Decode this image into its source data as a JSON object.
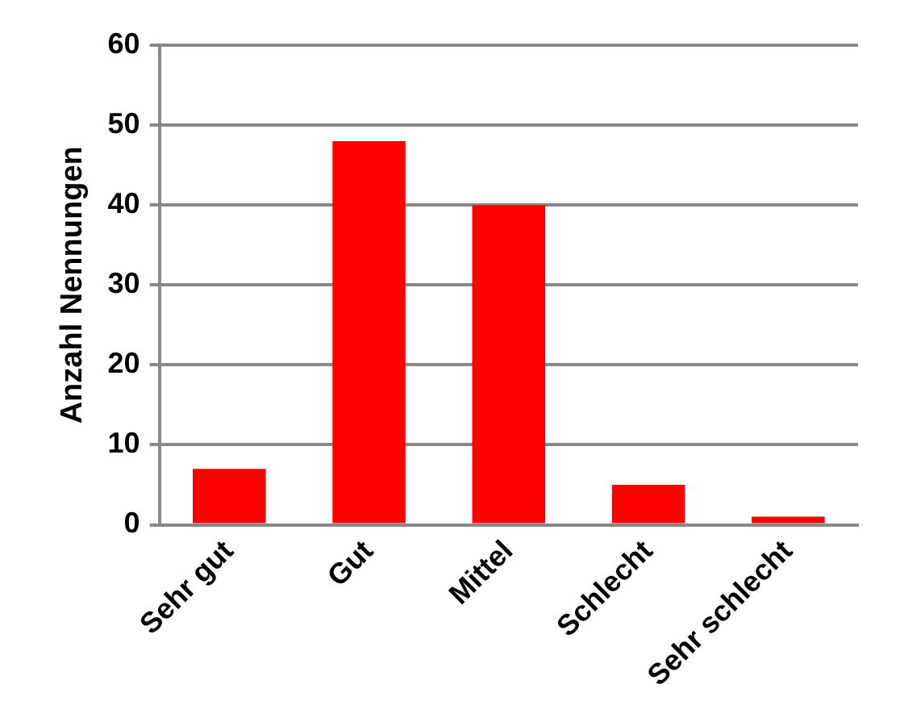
{
  "chart_data": {
    "type": "bar",
    "ylabel": "Anzahl Nennungen",
    "categories": [
      "Sehr gut",
      "Gut",
      "Mittel",
      "Schlecht",
      "Sehr schlecht"
    ],
    "values": [
      7,
      48,
      40,
      5,
      1
    ],
    "color": "#ff0000",
    "ylim": [
      0,
      60
    ],
    "yticks": [
      0,
      10,
      20,
      30,
      40,
      50,
      60
    ],
    "grid": "y",
    "legend": false
  }
}
